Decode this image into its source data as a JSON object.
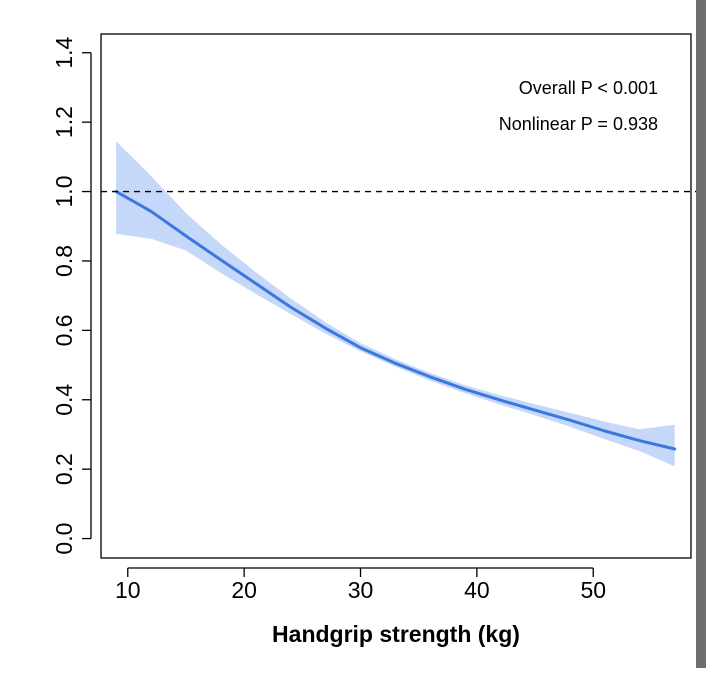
{
  "chart_data": {
    "type": "line",
    "title": "",
    "xlabel": "Handgrip strength (kg)",
    "ylabel": "",
    "xlim": [
      7.7,
      58.4
    ],
    "ylim": [
      -0.056,
      1.454
    ],
    "x_ticks": [
      10,
      20,
      30,
      40,
      50
    ],
    "y_ticks": [
      0.0,
      0.2,
      0.4,
      0.6,
      0.8,
      1.0,
      1.2,
      1.4
    ],
    "x_tick_labels": [
      "10",
      "20",
      "30",
      "40",
      "50"
    ],
    "y_tick_labels": [
      "0.0",
      "0.2",
      "0.4",
      "0.6",
      "0.8",
      "1.0",
      "1.2",
      "1.4"
    ],
    "reference_line": {
      "y": 1.0,
      "style": "dashed"
    },
    "annotations": [
      "Overall P < 0.001",
      "Nonlinear P = 0.938"
    ],
    "grid": false,
    "legend": "none",
    "series": [
      {
        "x": [
          9,
          12,
          15,
          18,
          21,
          24,
          27,
          30,
          33,
          36,
          39,
          42,
          45,
          48,
          51,
          54,
          57
        ],
        "values": [
          1.0,
          0.943,
          0.872,
          0.803,
          0.735,
          0.667,
          0.606,
          0.55,
          0.505,
          0.466,
          0.43,
          0.399,
          0.37,
          0.341,
          0.31,
          0.282,
          0.258
        ],
        "lower": [
          0.878,
          0.864,
          0.83,
          0.765,
          0.705,
          0.647,
          0.59,
          0.54,
          0.495,
          0.455,
          0.419,
          0.386,
          0.355,
          0.322,
          0.286,
          0.252,
          0.208
        ],
        "upper": [
          1.145,
          1.045,
          0.938,
          0.848,
          0.768,
          0.692,
          0.623,
          0.563,
          0.517,
          0.477,
          0.442,
          0.413,
          0.387,
          0.362,
          0.337,
          0.315,
          0.328
        ]
      }
    ],
    "colors": {
      "line": "#3a78e0",
      "band": "#c6d8fa",
      "axis": "#000000",
      "reference": "#000000",
      "page_edge": "#6f6f6f"
    }
  }
}
